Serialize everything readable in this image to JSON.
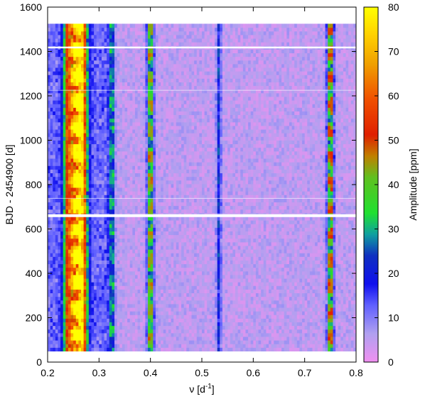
{
  "chart_data": {
    "type": "heatmap",
    "title": "",
    "xlabel": "ν [d⁻¹]",
    "xlabel_base": "ν [d",
    "xlabel_sup": "-1",
    "xlabel_close": "]",
    "ylabel": "BJD - 2454900 [d]",
    "colorbar_label": "Amplitude [ppm]",
    "xlim": [
      0.2,
      0.8
    ],
    "ylim": [
      0,
      1600
    ],
    "zlim": [
      0,
      80
    ],
    "x_ticks": [
      "0.2",
      "0.3",
      "0.4",
      "0.5",
      "0.6",
      "0.7",
      "0.8"
    ],
    "y_ticks": [
      "0",
      "200",
      "400",
      "600",
      "800",
      "1000",
      "1200",
      "1400",
      "1600"
    ],
    "colorbar_ticks": [
      "0",
      "10",
      "20",
      "30",
      "40",
      "50",
      "60",
      "70",
      "80"
    ],
    "data_time_range": [
      50,
      1525
    ],
    "gaps": [
      {
        "time": 660,
        "style": "thick"
      },
      {
        "time": 1418,
        "style": "medium"
      },
      {
        "time": 1225,
        "style": "thin"
      },
      {
        "time": 738,
        "style": "thin"
      }
    ],
    "features": [
      {
        "nu": 0.255,
        "width": 0.012,
        "peak_amplitude": 75,
        "description": "strongest band"
      },
      {
        "nu": 0.268,
        "width": 0.006,
        "peak_amplitude": 40
      },
      {
        "nu": 0.238,
        "width": 0.005,
        "peak_amplitude": 25
      },
      {
        "nu": 0.325,
        "width": 0.004,
        "peak_amplitude": 22
      },
      {
        "nu": 0.4,
        "width": 0.004,
        "peak_amplitude": 50
      },
      {
        "nu": 0.533,
        "width": 0.003,
        "peak_amplitude": 20
      },
      {
        "nu": 0.75,
        "width": 0.004,
        "peak_amplitude": 55
      }
    ],
    "colormap": [
      "#f090f0",
      "#b0a0f0",
      "#6060ff",
      "#1010ee",
      "#1030c0",
      "#10a0a0",
      "#20e030",
      "#60c020",
      "#c08000",
      "#e02000",
      "#f05000",
      "#f0a000",
      "#ffd000",
      "#ffff00"
    ]
  }
}
